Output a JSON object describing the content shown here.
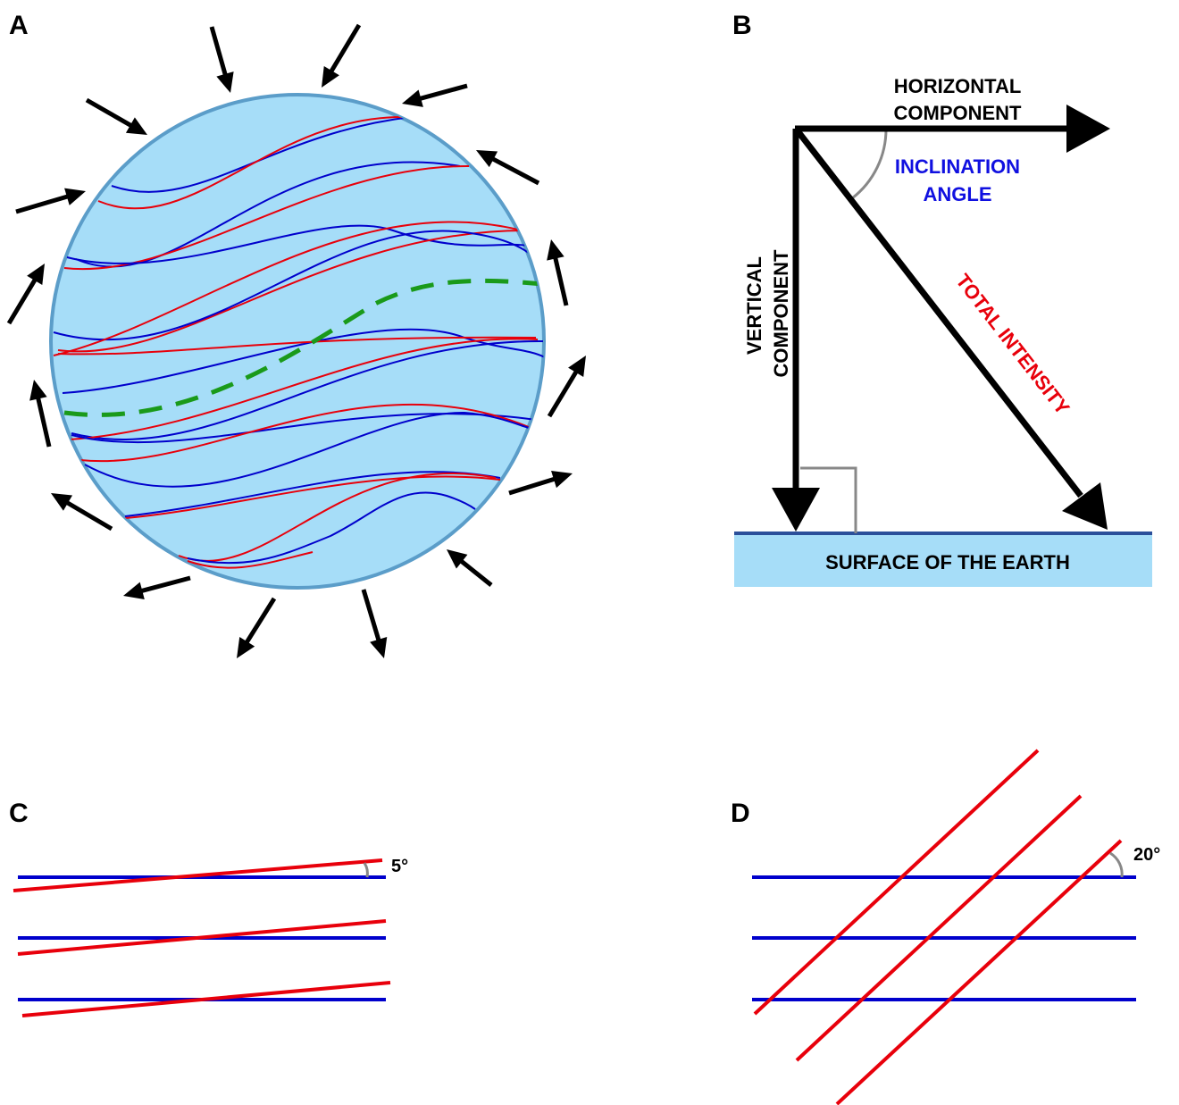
{
  "panels": {
    "a": {
      "label": "A"
    },
    "b": {
      "label": "B",
      "horizontal_line1": "HORIZONTAL",
      "horizontal_line2": "COMPONENT",
      "inclination_line1": "INCLINATION",
      "inclination_line2": "ANGLE",
      "vertical_line1": "VERTICAL",
      "vertical_line2": "COMPONENT",
      "total_intensity": "TOTAL INTENSITY",
      "surface": "SURFACE OF THE EARTH"
    },
    "c": {
      "label": "C",
      "angle_label": "5°"
    },
    "d": {
      "label": "D",
      "angle_label": "20°"
    }
  },
  "colors": {
    "sphere_fill": "#a6ddf8",
    "sphere_stroke": "#5b9dc9",
    "blue_line": "#0000cc",
    "red_line": "#e8000b",
    "green_dash": "#1a9a1a",
    "angle_arc": "#888888",
    "surface_fill": "#a6ddf8",
    "surface_line": "#2b4f9a",
    "inclination_text": "#1010e0",
    "total_text": "#e8000b"
  }
}
